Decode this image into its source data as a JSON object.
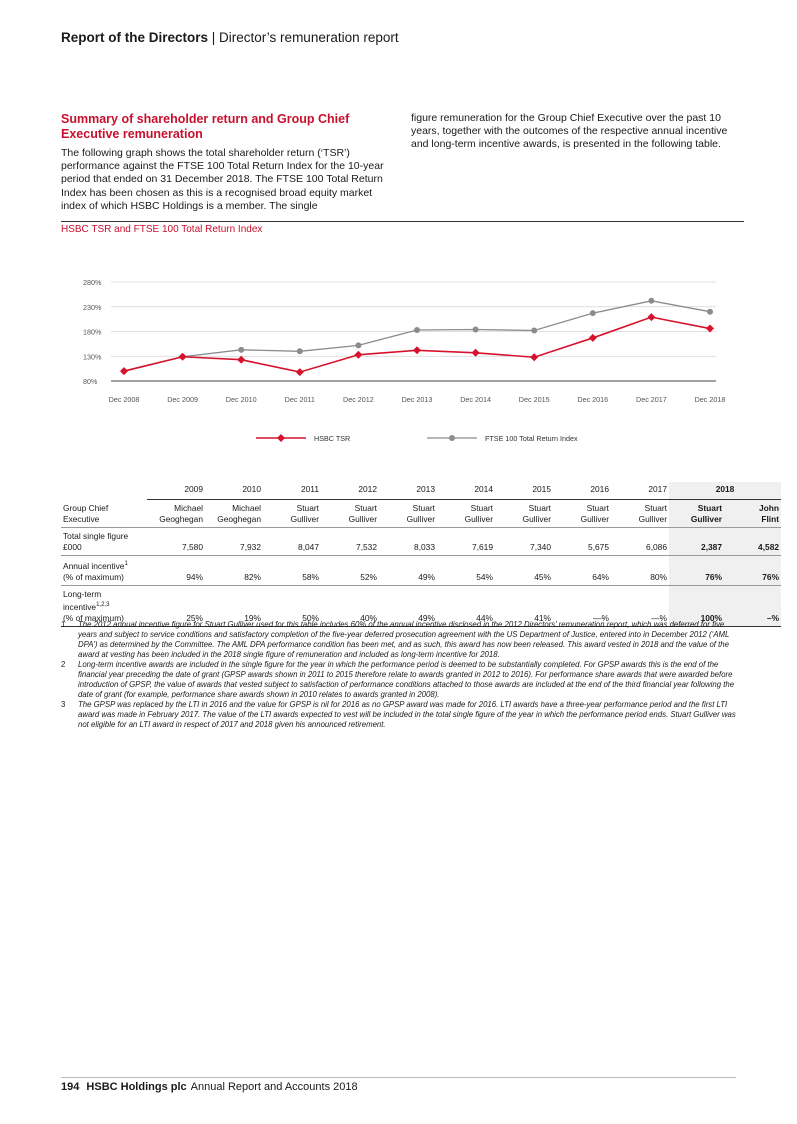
{
  "header": {
    "section": "Report of the Directors",
    "separator": " | ",
    "subsection": "Director’s remuneration report"
  },
  "section_title": "Summary of shareholder return and Group Chief Executive remuneration",
  "para_left": "The following graph shows the total shareholder return (‘TSR’) performance against the FTSE 100 Total Return Index for the 10-year period that ended on 31 December 2018. The FTSE 100 Total Return Index has been chosen as this is a recognised broad equity market index of which HSBC Holdings is a member. The single",
  "para_right": "figure remuneration for the Group Chief Executive over the past 10 years, together with the outcomes of the respective annual incentive and long-term incentive awards, is presented in the following table.",
  "chart_title": "HSBC TSR and FTSE 100 Total Return Index",
  "chart_data": {
    "type": "line",
    "x": [
      "Dec 2008",
      "Dec 2009",
      "Dec 2010",
      "Dec 2011",
      "Dec 2012",
      "Dec 2013",
      "Dec 2014",
      "Dec 2015",
      "Dec 2016",
      "Dec 2017",
      "Dec 2018"
    ],
    "yticks": [
      "280%",
      "230%",
      "180%",
      "130%",
      "80%"
    ],
    "ylim": [
      80,
      280
    ],
    "series": [
      {
        "name": "HSBC TSR",
        "color": "#d7122d",
        "values": [
          100,
          129,
          123,
          98,
          133,
          142,
          137,
          128,
          167,
          209,
          186
        ]
      },
      {
        "name": "FTSE 100 Total Return Index",
        "color": "#8c8c8c",
        "values": [
          100,
          129,
          143,
          140,
          152,
          183,
          184,
          182,
          217,
          242,
          220
        ]
      }
    ],
    "legend_position": "bottom"
  },
  "table": {
    "years": [
      "2009",
      "2010",
      "2011",
      "2012",
      "2013",
      "2014",
      "2015",
      "2016",
      "2017"
    ],
    "year_2018": "2018",
    "row_gce": {
      "l1": "Group Chief",
      "l2": "Executive",
      "names": [
        [
          "Michael",
          "Geoghegan"
        ],
        [
          "Michael",
          "Geoghegan"
        ],
        [
          "Stuart",
          "Gulliver"
        ],
        [
          "Stuart",
          "Gulliver"
        ],
        [
          "Stuart",
          "Gulliver"
        ],
        [
          "Stuart",
          "Gulliver"
        ],
        [
          "Stuart",
          "Gulliver"
        ],
        [
          "Stuart",
          "Gulliver"
        ],
        [
          "Stuart",
          "Gulliver"
        ],
        [
          "Stuart",
          "Gulliver"
        ],
        [
          "John",
          "Flint"
        ]
      ]
    },
    "row_tsf": {
      "l1": "Total single figure",
      "l2": "£000",
      "values": [
        "7,580",
        "7,932",
        "8,047",
        "7,532",
        "8,033",
        "7,619",
        "7,340",
        "5,675",
        "6,086",
        "2,387",
        "4,582"
      ]
    },
    "row_ai": {
      "l1": "Annual incentive",
      "sup": "1",
      "l2": "(% of maximum)",
      "values": [
        "94%",
        "82%",
        "58%",
        "52%",
        "49%",
        "54%",
        "45%",
        "64%",
        "80%",
        "76%",
        "76%"
      ]
    },
    "row_lti": {
      "l1": "Long-term",
      "l2": "incentive",
      "sup": "1,2,3",
      "l3": "(% of maximum)",
      "values": [
        "25%",
        "19%",
        "50%",
        "40%",
        "49%",
        "44%",
        "41%",
        "—%",
        "—%",
        "100%",
        "–%"
      ]
    }
  },
  "notes": [
    {
      "num": "1",
      "text": "The 2012 annual incentive figure for Stuart Gulliver used for this table includes 60% of the annual incentive disclosed in the 2012 Directors’ remuneration report, which was deferred for five years and subject to service conditions and satisfactory completion of the five-year deferred prosecution agreement with the US Department of Justice, entered into in December 2012 (‘AML DPA’) as determined by the Committee. The AML DPA performance condition has been met, and as such, this award has now been released. This award vested in 2018 and the value of the award at vesting has been included in the 2018 single figure of remuneration and included as long-term incentive for 2018."
    },
    {
      "num": "2",
      "text": "Long-term incentive awards are included in the single figure for the year in which the performance period is deemed to be substantially completed. For GPSP awards this is the end of the financial year preceding the date of grant (GPSP awards shown in 2011 to 2015 therefore relate to awards granted in 2012 to 2016). For performance share awards that were awarded before introduction of GPSP, the value of awards that vested subject to satisfaction of performance conditions attached to those awards are included at the end of the third financial year following the date of grant (for example, performance share awards shown in 2010 relates to awards granted in 2008)."
    },
    {
      "num": "3",
      "text": "The GPSP was replaced by the LTI in 2016 and the value for GPSP is nil for 2016 as no GPSP award was made for 2016. LTI awards have a three-year performance period and the first LTI award was made in February 2017. The value of the LTI awards expected to vest will be included in the total single figure of the year in which the performance period ends. Stuart Gulliver was not eligible for an LTI award in respect of 2017 and 2018 given his announced retirement."
    }
  ],
  "footer": {
    "page": "194",
    "company": "HSBC Holdings plc",
    "doc": "Annual Report and Accounts 2018"
  }
}
